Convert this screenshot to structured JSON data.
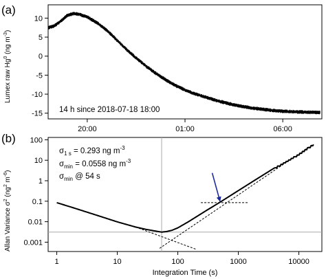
{
  "chart_data": [
    {
      "panel_label": "(a)",
      "type": "line",
      "ylabel_main": "Lumex raw Hg",
      "ylabel_sup": "0",
      "ylabel_unit": "(ng m",
      "ylabel_unit_sup": "-3",
      "ylabel_close": ")",
      "annotation": "14 h since 2018-07-18 18:00",
      "xlim": [
        0,
        14
      ],
      "ylim": [
        -16.5,
        13.5
      ],
      "x_ticks": [
        {
          "value": 2,
          "label": "20:00"
        },
        {
          "value": 7,
          "label": "01:00"
        },
        {
          "value": 12,
          "label": "06:00"
        }
      ],
      "y_ticks": [
        {
          "value": 10,
          "label": "10"
        },
        {
          "value": 5,
          "label": "5"
        },
        {
          "value": 0,
          "label": "0"
        },
        {
          "value": -5,
          "label": "-5"
        },
        {
          "value": -10,
          "label": "-10"
        },
        {
          "value": -15,
          "label": "-15"
        }
      ],
      "series": [
        {
          "x": [
            0,
            0.3,
            0.6,
            1.0,
            1.3,
            1.6,
            2.0,
            2.5,
            3.0,
            3.5,
            4.0,
            4.5,
            5.0,
            5.5,
            6.0,
            6.5,
            7.0,
            7.5,
            8.0,
            8.5,
            9.0,
            9.5,
            10.0,
            10.5,
            11.0,
            11.5,
            12.0,
            12.5,
            13.0,
            13.5,
            13.9
          ],
          "y": [
            7.5,
            7.9,
            9.0,
            10.8,
            11.2,
            11.0,
            10.3,
            8.8,
            6.8,
            4.3,
            1.8,
            -0.5,
            -2.6,
            -4.5,
            -6.2,
            -7.7,
            -8.9,
            -9.9,
            -10.7,
            -11.5,
            -12.2,
            -12.8,
            -13.3,
            -13.7,
            -14.0,
            -14.3,
            -14.5,
            -14.6,
            -14.7,
            -14.8,
            -14.8
          ],
          "noise": 0.5,
          "color": "#000000"
        }
      ]
    },
    {
      "panel_label": "(b)",
      "type": "line",
      "log_x": true,
      "log_y": true,
      "xlabel": "Integration Time (s)",
      "ylabel_main": "Allan Variance σ",
      "ylabel_sup": "2",
      "ylabel_unit": "(ng",
      "ylabel_unit_sup": "2",
      "ylabel_unit_mid": "m",
      "ylabel_unit_sup2": "-6",
      "ylabel_close": ")",
      "xlim": [
        0.72,
        24000
      ],
      "ylim": [
        0.00035,
        130
      ],
      "x_ticks": [
        {
          "value": 1,
          "label": "1"
        },
        {
          "value": 10,
          "label": "10"
        },
        {
          "value": 100,
          "label": "100"
        },
        {
          "value": 1000,
          "label": "1000"
        },
        {
          "value": 10000,
          "label": "10000"
        }
      ],
      "y_ticks": [
        {
          "value": 100,
          "label": "100"
        },
        {
          "value": 10,
          "label": "10"
        },
        {
          "value": 1,
          "label": "1"
        },
        {
          "value": 0.1,
          "label": "0.1"
        },
        {
          "value": 0.01,
          "label": "0.01"
        },
        {
          "value": 0.001,
          "label": "0.001"
        }
      ],
      "annotations": [
        {
          "sym": "σ",
          "sub": "1 s",
          "text": " = 0.293 ng m",
          "sup": "-3"
        },
        {
          "sym": "σ",
          "sub": "min",
          "text": " = 0.0558 ng m",
          "sup": "-3"
        },
        {
          "sym": "σ",
          "sub": "min",
          "text": " @ 54 s",
          "sup": ""
        }
      ],
      "minimum": {
        "x": 54,
        "y": 0.0031
      },
      "series": [
        {
          "x": [
            1,
            2,
            5,
            10,
            20,
            30,
            45,
            54,
            65,
            80,
            100,
            150,
            200,
            300,
            500,
            1000,
            2000,
            5000,
            7000,
            10000,
            12000,
            14000,
            16000,
            17500
          ],
          "y": [
            0.085,
            0.045,
            0.019,
            0.0098,
            0.0055,
            0.0042,
            0.0034,
            0.0031,
            0.0033,
            0.0038,
            0.005,
            0.01,
            0.017,
            0.036,
            0.09,
            0.33,
            1.2,
            6.5,
            11,
            21,
            30,
            42,
            55,
            60
          ],
          "color": "#000000"
        }
      ],
      "reference_lines": [
        {
          "x": [
            0.72,
            24000
          ],
          "y": [
            0.0031,
            0.0031
          ],
          "style": "solid",
          "color": "#aaaaaa"
        },
        {
          "x": [
            54,
            54
          ],
          "y": [
            0.00035,
            130
          ],
          "style": "solid",
          "color": "#aaaaaa"
        },
        {
          "x": [
            20,
            200
          ],
          "y": [
            0.0055,
            0.00045
          ],
          "style": "dashed",
          "color": "#000000"
        },
        {
          "x": [
            50,
            17000
          ],
          "y": [
            0.0005,
            60
          ],
          "style": "dashed",
          "color": "#000000"
        },
        {
          "x": [
            240,
            1500
          ],
          "y": [
            0.085,
            0.085
          ],
          "style": "dashed",
          "color": "#000000"
        }
      ],
      "arrow": {
        "from": [
          370,
          2.4
        ],
        "to": [
          500,
          0.095
        ],
        "color": "#1a2a9c"
      }
    }
  ]
}
